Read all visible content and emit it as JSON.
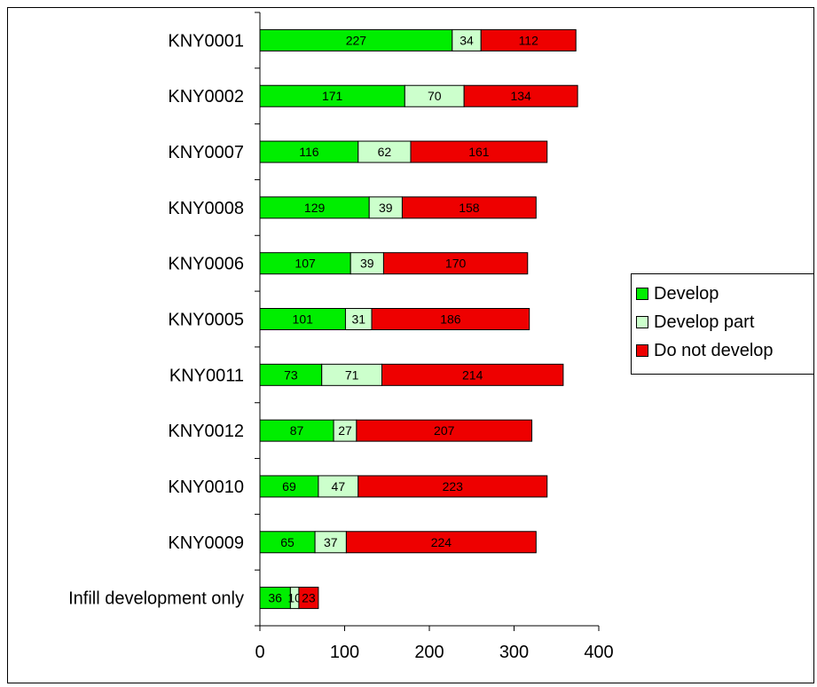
{
  "chart_data": {
    "type": "bar",
    "orientation": "horizontal",
    "stacked": true,
    "categories": [
      "KNY0001",
      "KNY0002",
      "KNY0007",
      "KNY0008",
      "KNY0006",
      "KNY0005",
      "KNY0011",
      "KNY0012",
      "KNY0010",
      "KNY0009",
      "Infill development only"
    ],
    "series": [
      {
        "name": "Develop",
        "color": "#00ee00",
        "values": [
          227,
          171,
          116,
          129,
          107,
          101,
          73,
          87,
          69,
          65,
          36
        ]
      },
      {
        "name": "Develop part",
        "color": "#ccffcc",
        "values": [
          34,
          70,
          62,
          39,
          39,
          31,
          71,
          27,
          47,
          37,
          10
        ]
      },
      {
        "name": "Do not develop",
        "color": "#ee0000",
        "values": [
          112,
          134,
          161,
          158,
          170,
          186,
          214,
          207,
          223,
          224,
          23
        ]
      }
    ],
    "xlim": [
      0,
      400
    ],
    "xticks": [
      0,
      100,
      200,
      300,
      400
    ],
    "title": "",
    "xlabel": "",
    "ylabel": "",
    "legend_position": "right",
    "grid": false
  }
}
